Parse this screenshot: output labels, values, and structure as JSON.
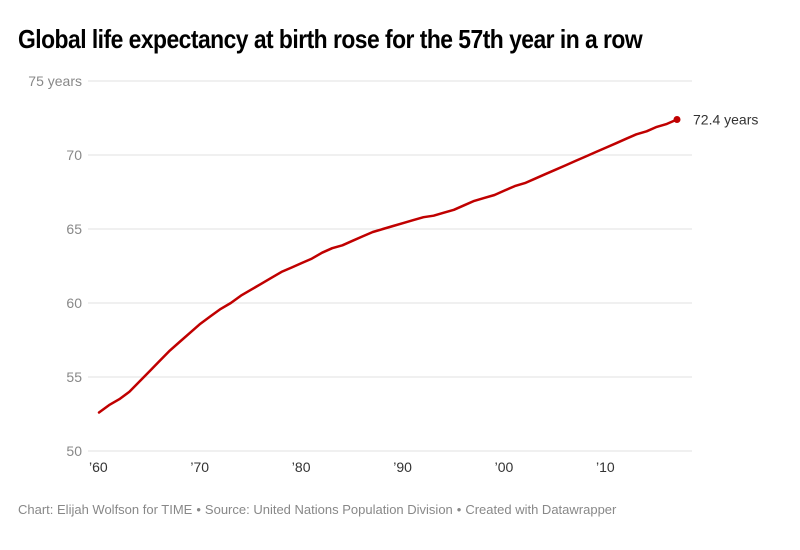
{
  "title": "Global life expectancy at birth rose for the 57th year in a row",
  "footer": {
    "credit": "Chart: Elijah Wolfson for TIME",
    "source": "Source: United Nations Population Division",
    "tool": "Created with Datawrapper",
    "separator": "•"
  },
  "colors": {
    "line": "#c00000",
    "grid": "#e2e2e2",
    "tick_text": "#888888"
  },
  "chart_data": {
    "type": "line",
    "title": "Global life expectancy at birth rose for the 57th year in a row",
    "xlabel": "",
    "ylabel": "",
    "ylim": [
      50,
      75
    ],
    "xlim": [
      1960,
      2017
    ],
    "grid": true,
    "yticks": [
      50,
      55,
      60,
      65,
      70,
      75
    ],
    "ytick_labels": [
      "50",
      "55",
      "60",
      "65",
      "70",
      "75 years"
    ],
    "xticks": [
      1960,
      1970,
      1980,
      1990,
      2000,
      2010
    ],
    "xtick_labels": [
      "’60",
      "’70",
      "’80",
      "’90",
      "’00",
      "’10"
    ],
    "end_label": "72.4 years",
    "series": [
      {
        "name": "Global life expectancy at birth",
        "x": [
          1960,
          1961,
          1962,
          1963,
          1964,
          1965,
          1966,
          1967,
          1968,
          1969,
          1970,
          1971,
          1972,
          1973,
          1974,
          1975,
          1976,
          1977,
          1978,
          1979,
          1980,
          1981,
          1982,
          1983,
          1984,
          1985,
          1986,
          1987,
          1988,
          1989,
          1990,
          1991,
          1992,
          1993,
          1994,
          1995,
          1996,
          1997,
          1998,
          1999,
          2000,
          2001,
          2002,
          2003,
          2004,
          2005,
          2006,
          2007,
          2008,
          2009,
          2010,
          2011,
          2012,
          2013,
          2014,
          2015,
          2016,
          2017
        ],
        "values": [
          52.6,
          53.1,
          53.5,
          54.0,
          54.7,
          55.4,
          56.1,
          56.8,
          57.4,
          58.0,
          58.6,
          59.1,
          59.6,
          60.0,
          60.5,
          60.9,
          61.3,
          61.7,
          62.1,
          62.4,
          62.7,
          63.0,
          63.4,
          63.7,
          63.9,
          64.2,
          64.5,
          64.8,
          65.0,
          65.2,
          65.4,
          65.6,
          65.8,
          65.9,
          66.1,
          66.3,
          66.6,
          66.9,
          67.1,
          67.3,
          67.6,
          67.9,
          68.1,
          68.4,
          68.7,
          69.0,
          69.3,
          69.6,
          69.9,
          70.2,
          70.5,
          70.8,
          71.1,
          71.4,
          71.6,
          71.9,
          72.1,
          72.4
        ]
      }
    ]
  }
}
